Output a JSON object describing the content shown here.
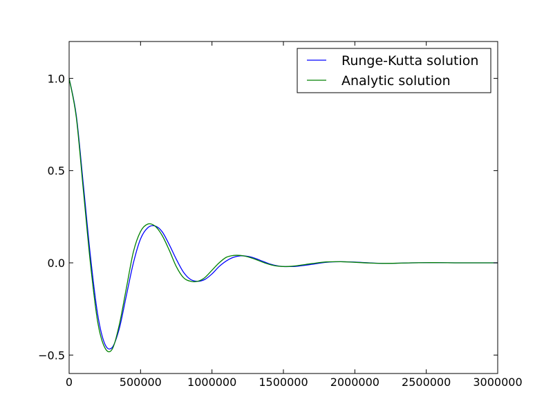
{
  "chart_data": {
    "type": "line",
    "title": "",
    "xlabel": "",
    "ylabel": "",
    "xlim": [
      0,
      3000000
    ],
    "ylim": [
      -0.6,
      1.2
    ],
    "xticks": [
      0,
      500000,
      1000000,
      1500000,
      2000000,
      2500000,
      3000000
    ],
    "xtick_labels": [
      "0",
      "500000",
      "1000000",
      "1500000",
      "2000000",
      "2500000",
      "3000000"
    ],
    "yticks": [
      -0.5,
      0.0,
      0.5,
      1.0
    ],
    "ytick_labels": [
      "−0.5",
      "0.0",
      "0.5",
      "1.0"
    ],
    "grid": false,
    "legend_position": "top-right",
    "series": [
      {
        "name": "Runge-Kutta solution",
        "color": "#0000ff",
        "x": [
          0,
          50000,
          100000,
          150000,
          200000,
          250000,
          300000,
          350000,
          400000,
          450000,
          500000,
          550000,
          600000,
          650000,
          700000,
          750000,
          800000,
          850000,
          900000,
          950000,
          1000000,
          1050000,
          1100000,
          1150000,
          1200000,
          1250000,
          1300000,
          1350000,
          1400000,
          1450000,
          1500000,
          1550000,
          1600000,
          1700000,
          1800000,
          1900000,
          2000000,
          2100000,
          2200000,
          2300000,
          2400000,
          2500000,
          2600000,
          2700000,
          2800000,
          2900000,
          3000000
        ],
        "y": [
          1.0,
          0.8,
          0.42,
          0.03,
          -0.28,
          -0.44,
          -0.46,
          -0.36,
          -0.18,
          0.0,
          0.13,
          0.19,
          0.2,
          0.17,
          0.1,
          0.02,
          -0.05,
          -0.09,
          -0.1,
          -0.09,
          -0.06,
          -0.02,
          0.01,
          0.03,
          0.038,
          0.035,
          0.025,
          0.01,
          -0.005,
          -0.015,
          -0.02,
          -0.02,
          -0.018,
          -0.008,
          0.003,
          0.006,
          0.004,
          0.0,
          -0.003,
          -0.002,
          0.0,
          0.001,
          0.001,
          0.0,
          0.0,
          0.0,
          0.0
        ]
      },
      {
        "name": "Analytic solution",
        "color": "#008000",
        "x": [
          0,
          50000,
          100000,
          150000,
          200000,
          250000,
          300000,
          350000,
          400000,
          450000,
          500000,
          550000,
          600000,
          650000,
          700000,
          750000,
          800000,
          850000,
          900000,
          950000,
          1000000,
          1050000,
          1100000,
          1150000,
          1200000,
          1250000,
          1300000,
          1350000,
          1400000,
          1450000,
          1500000,
          1550000,
          1600000,
          1700000,
          1800000,
          1900000,
          2000000,
          2100000,
          2200000,
          2300000,
          2400000,
          2500000,
          2600000,
          2700000,
          2800000,
          2900000,
          3000000
        ],
        "y": [
          1.0,
          0.79,
          0.39,
          -0.01,
          -0.32,
          -0.46,
          -0.47,
          -0.34,
          -0.14,
          0.06,
          0.17,
          0.21,
          0.2,
          0.15,
          0.07,
          -0.02,
          -0.08,
          -0.1,
          -0.1,
          -0.08,
          -0.04,
          0.0,
          0.03,
          0.04,
          0.04,
          0.033,
          0.02,
          0.005,
          -0.008,
          -0.017,
          -0.02,
          -0.019,
          -0.015,
          -0.004,
          0.005,
          0.006,
          0.003,
          -0.001,
          -0.003,
          -0.002,
          0.0,
          0.001,
          0.001,
          0.0,
          0.0,
          0.0,
          0.0
        ]
      }
    ]
  }
}
